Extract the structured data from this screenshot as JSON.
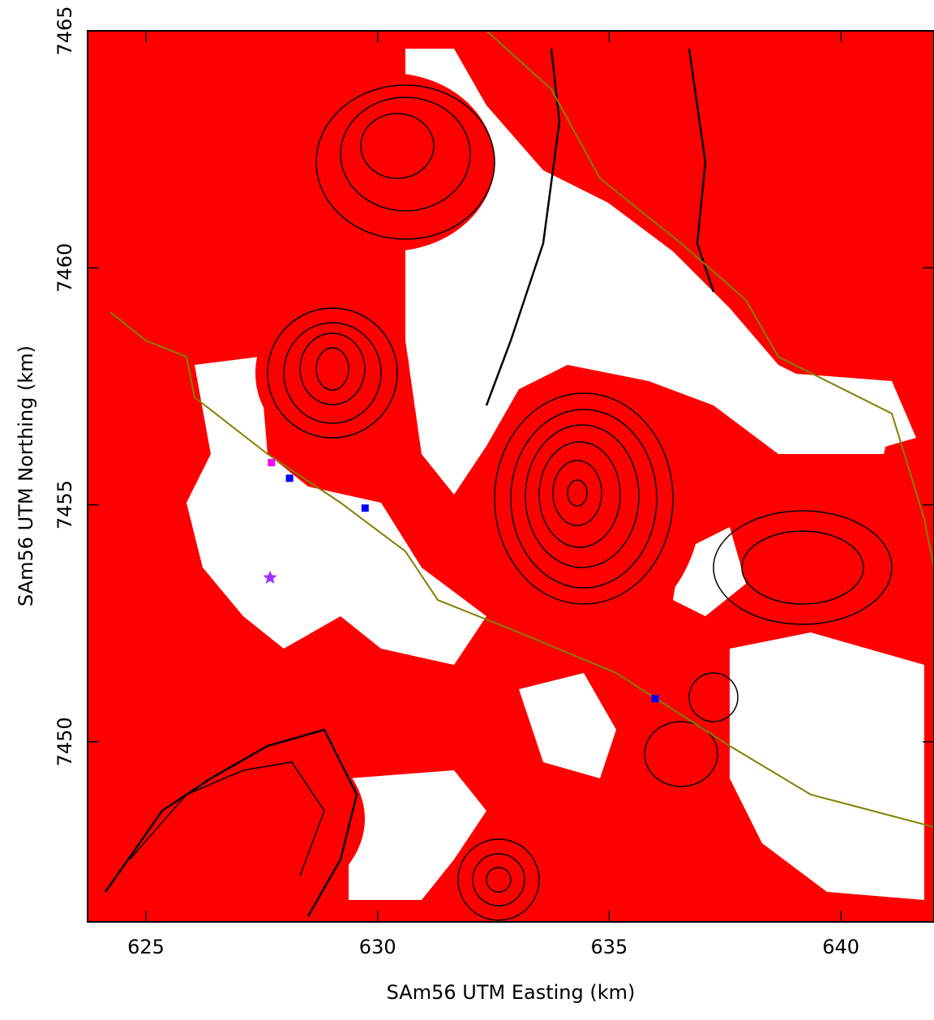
{
  "chart_data": {
    "type": "map",
    "x_label": "SAm56 UTM Easting (km)",
    "y_label": "SAm56 UTM Northing (km)",
    "xlim": [
      623.74,
      642.01
    ],
    "ylim": [
      7446.2,
      7465
    ],
    "xticks": [
      625,
      630,
      635,
      640
    ],
    "yticks": [
      7450,
      7455,
      7460,
      7465
    ],
    "points": [
      {
        "x": 627.71,
        "y": 7455.89,
        "color": "#ff00ff",
        "marker": "square"
      },
      {
        "x": 628.1,
        "y": 7455.56,
        "color": "#0000ff",
        "marker": "square"
      },
      {
        "x": 629.73,
        "y": 7454.93,
        "color": "#0000ff",
        "marker": "square"
      },
      {
        "x": 635.99,
        "y": 7450.91,
        "color": "#0000ff",
        "marker": "square"
      },
      {
        "x": 627.68,
        "y": 7453.46,
        "color": "#9933ff",
        "marker": "star"
      }
    ]
  }
}
